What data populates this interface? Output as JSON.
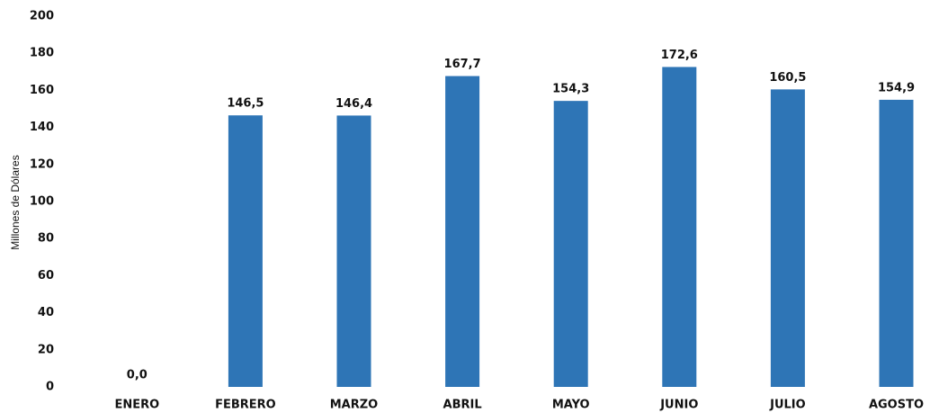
{
  "chart_data": {
    "type": "bar",
    "y_axis_label": "Millones de Dólares",
    "categories": [
      "ENERO",
      "FEBRERO",
      "MARZO",
      "ABRIL",
      "MAYO",
      "JUNIO",
      "JULIO",
      "AGOSTO"
    ],
    "values": [
      0,
      146.5,
      146.4,
      167.7,
      154.3,
      172.6,
      160.5,
      154.9
    ],
    "value_labels": [
      "0,0",
      "146,5",
      "146,4",
      "167,7",
      "154,3",
      "172,6",
      "160,5",
      "154,9"
    ],
    "color": "#2e75b6",
    "ylim": [
      0,
      200
    ],
    "yticks": [
      0,
      20,
      40,
      60,
      80,
      100,
      120,
      140,
      160,
      180,
      200
    ],
    "grid": false
  }
}
